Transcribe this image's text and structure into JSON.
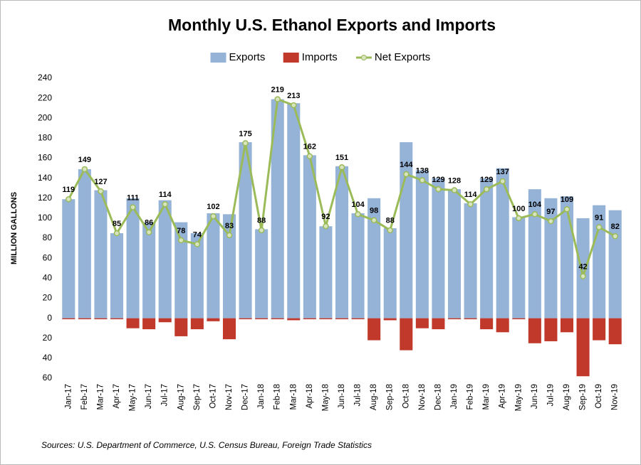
{
  "chart_data": {
    "type": "bar",
    "title": "Monthly U.S. Ethanol Exports and Imports",
    "y_label": "MILLION GALLONS",
    "source": "Sources: U.S. Department of Commerce, U.S. Census Bureau, Foreign Trade Statistics",
    "categories": [
      "Jan-17",
      "Feb-17",
      "Mar-17",
      "Apr-17",
      "May-17",
      "Jun-17",
      "Jul-17",
      "Aug-17",
      "Sep-17",
      "Oct-17",
      "Nov-17",
      "Dec-17",
      "Jan-18",
      "Feb-18",
      "Mar-18",
      "Apr-18",
      "May-18",
      "Jun-18",
      "Jul-18",
      "Aug-18",
      "Sep-18",
      "Oct-18",
      "Nov-18",
      "Dec-18",
      "Jan-19",
      "Feb-19",
      "Mar-19",
      "Apr-19",
      "May-19",
      "Jun-19",
      "Jul-19",
      "Aug-19",
      "Sep-19",
      "Oct-19",
      "Nov-19"
    ],
    "series": [
      {
        "name": "Exports",
        "type": "bar",
        "color": "#95b3d7",
        "values": [
          119,
          149,
          128,
          85,
          120,
          96,
          118,
          96,
          85,
          105,
          104,
          176,
          89,
          219,
          215,
          163,
          92,
          152,
          105,
          120,
          90,
          176,
          148,
          140,
          129,
          115,
          140,
          150,
          101,
          129,
          120,
          122,
          100,
          113,
          108
        ]
      },
      {
        "name": "Imports",
        "type": "bar",
        "color": "#c0392b",
        "values": [
          -1,
          -1,
          -1,
          -1,
          -10,
          -11,
          -4,
          -18,
          -11,
          -3,
          -21,
          -1,
          -1,
          -1,
          -2,
          -1,
          -1,
          -1,
          -1,
          -22,
          -2,
          -32,
          -10,
          -11,
          -1,
          -1,
          -11,
          -14,
          -1,
          -25,
          -23,
          -14,
          -58,
          -22,
          -26
        ]
      },
      {
        "name": "Net Exports",
        "type": "line",
        "color": "#9bbb59",
        "values": [
          119,
          149,
          127,
          85,
          111,
          86,
          114,
          78,
          74,
          102,
          83,
          175,
          88,
          219,
          213,
          162,
          92,
          151,
          104,
          98,
          88,
          144,
          138,
          129,
          128,
          114,
          129,
          137,
          100,
          104,
          97,
          109,
          42,
          91,
          82
        ]
      }
    ],
    "ylim": [
      -60,
      240
    ],
    "yticks": [
      {
        "value": -60,
        "label": "60"
      },
      {
        "value": -40,
        "label": "40"
      },
      {
        "value": -20,
        "label": "20"
      },
      0,
      20,
      40,
      60,
      80,
      100,
      120,
      140,
      160,
      180,
      200,
      220,
      240
    ],
    "grid": false,
    "legend": "top"
  }
}
